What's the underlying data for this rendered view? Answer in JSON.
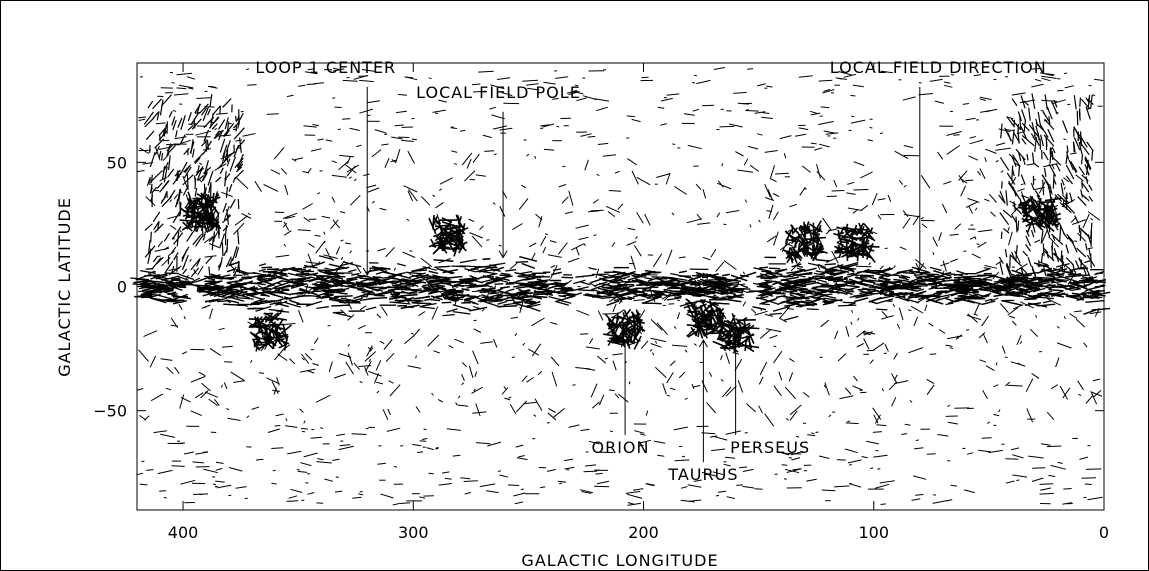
{
  "chart_data": {
    "type": "scatter",
    "subtype": "polarization-vector map",
    "title": "",
    "xlabel": "GALACTIC LONGITUDE",
    "ylabel": "GALACTIC LATITUDE",
    "xlim": [
      420,
      0
    ],
    "ylim": [
      -90,
      90
    ],
    "x_ticks": [
      400,
      300,
      200,
      100,
      0
    ],
    "y_ticks": [
      50,
      0,
      -50
    ],
    "x_tick_labels": [
      "400",
      "300",
      "200",
      "100",
      "0"
    ],
    "y_tick_labels": [
      "50",
      "0",
      "−50"
    ],
    "grid": false,
    "legend": "none",
    "vector_color": "#000000",
    "annotations": [
      {
        "id": "loop1",
        "text": "LOOP 1 CENTER",
        "x": 320,
        "y": 3,
        "label_lon": 338,
        "label_lat": 86
      },
      {
        "id": "pole",
        "text": "LOCAL FIELD POLE",
        "x": 261,
        "y": 10,
        "label_lon": 263,
        "label_lat": 76
      },
      {
        "id": "direction",
        "text": "LOCAL FIELD DIRECTION",
        "x": 80,
        "y": 5,
        "label_lon": 72,
        "label_lat": 86
      },
      {
        "id": "orion",
        "text": "ORION",
        "x": 208,
        "y": -20,
        "label_lon": 210,
        "label_lat": -67
      },
      {
        "id": "taurus",
        "text": "TAURUS",
        "x": 174,
        "y": -20,
        "label_lon": 174,
        "label_lat": -78
      },
      {
        "id": "perseus",
        "text": "PERSEUS",
        "x": 160,
        "y": -20,
        "label_lon": 145,
        "label_lat": -67
      }
    ],
    "clouds": [
      {
        "lon": 208,
        "lat": -17
      },
      {
        "lon": 173,
        "lat": -13
      },
      {
        "lon": 160,
        "lat": -19
      },
      {
        "lon": 285,
        "lat": 21
      },
      {
        "lon": 362,
        "lat": -18
      },
      {
        "lon": 130,
        "lat": 18
      },
      {
        "lon": 108,
        "lat": 18
      },
      {
        "lon": 392,
        "lat": 30
      },
      {
        "lon": 28,
        "lat": 30
      }
    ]
  }
}
